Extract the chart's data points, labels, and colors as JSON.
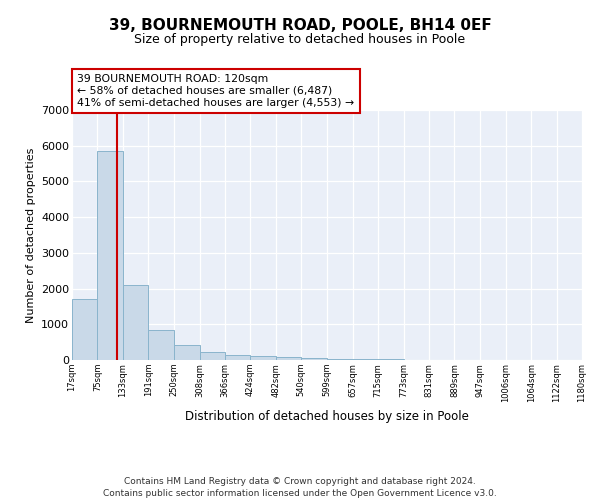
{
  "title": "39, BOURNEMOUTH ROAD, POOLE, BH14 0EF",
  "subtitle": "Size of property relative to detached houses in Poole",
  "xlabel": "Distribution of detached houses by size in Poole",
  "ylabel": "Number of detached properties",
  "footer_line1": "Contains HM Land Registry data © Crown copyright and database right 2024.",
  "footer_line2": "Contains public sector information licensed under the Open Government Licence v3.0.",
  "bar_edges": [
    17,
    75,
    133,
    191,
    250,
    308,
    366,
    424,
    482,
    540,
    599,
    657,
    715,
    773,
    831,
    889,
    947,
    1006,
    1064,
    1122,
    1180
  ],
  "bar_heights": [
    1700,
    5850,
    2100,
    830,
    430,
    230,
    130,
    110,
    80,
    50,
    30,
    20,
    15,
    10,
    0,
    0,
    0,
    0,
    0,
    0
  ],
  "bar_color": "#c9d9e8",
  "bar_edgecolor": "#8ab4cc",
  "property_size": 120,
  "vline_color": "#cc0000",
  "annotation_line1": "39 BOURNEMOUTH ROAD: 120sqm",
  "annotation_line2": "← 58% of detached houses are smaller (6,487)",
  "annotation_line3": "41% of semi-detached houses are larger (4,553) →",
  "annotation_box_color": "#cc0000",
  "annotation_fill": "white",
  "ylim": [
    0,
    7000
  ],
  "yticks": [
    0,
    1000,
    2000,
    3000,
    4000,
    5000,
    6000,
    7000
  ],
  "bg_color": "#eaeff8",
  "tick_labels": [
    "17sqm",
    "75sqm",
    "133sqm",
    "191sqm",
    "250sqm",
    "308sqm",
    "366sqm",
    "424sqm",
    "482sqm",
    "540sqm",
    "599sqm",
    "657sqm",
    "715sqm",
    "773sqm",
    "831sqm",
    "889sqm",
    "947sqm",
    "1006sqm",
    "1064sqm",
    "1122sqm",
    "1180sqm"
  ]
}
